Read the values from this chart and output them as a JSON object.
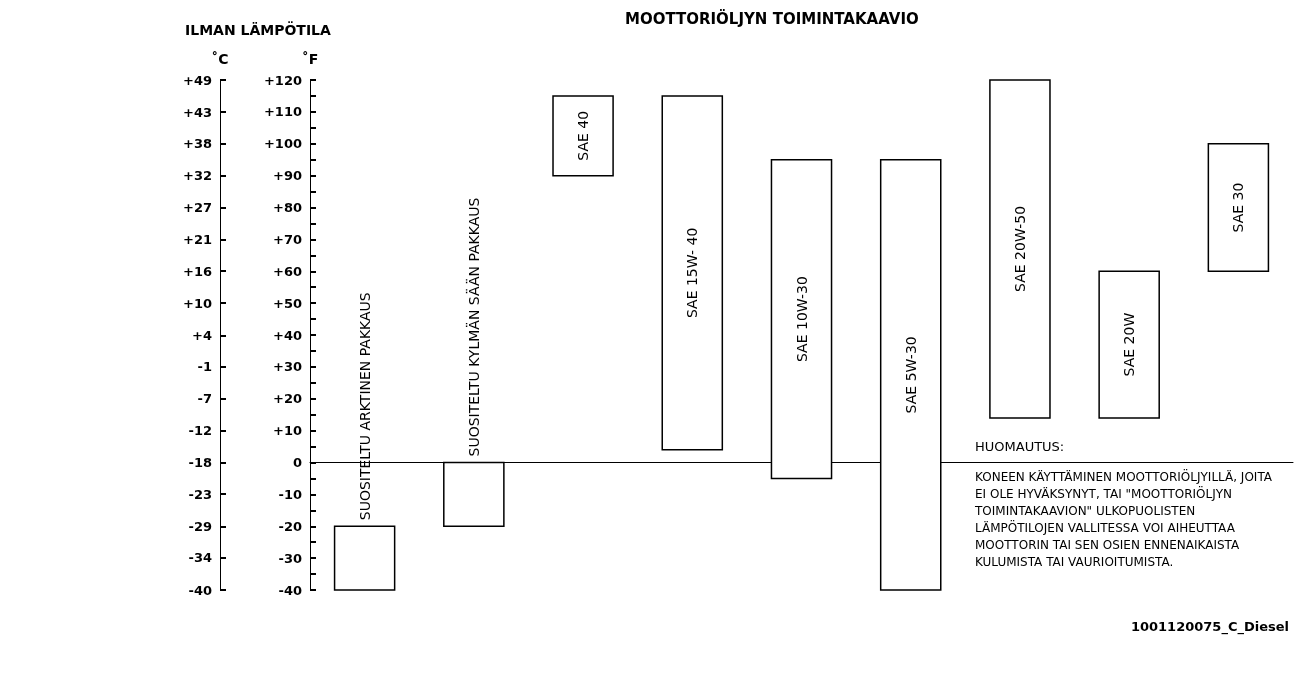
{
  "chart_data": {
    "type": "bar",
    "title": "MOOTTORIÖLJYN TOIMINTAKAAVIO",
    "subtitle": "ILMAN LÄMPÖTILA",
    "ylabel": "˚F",
    "y2label": "˚C",
    "categories": [
      "SUOSITELTU ARKTINEN PAKKAUS",
      "SUOSITELTU KYLMÄN SÄÄN PAKKAUS",
      "SAE 40",
      "SAE 15W- 40",
      "SAE 10W-30",
      "SAE 5W-30",
      "SAE 20W-50",
      "SAE 20W",
      "SAE 30"
    ],
    "base": [
      -40,
      -20,
      90,
      4,
      -5,
      -40,
      14,
      14,
      60
    ],
    "values": [
      20,
      20,
      25,
      111,
      100,
      135,
      106,
      46,
      40
    ],
    "color": "#ffffff",
    "ylim": [
      -40,
      120
    ],
    "yticks": [
      {
        "value": -40,
        "label": "-40"
      },
      {
        "value": -35,
        "label": null
      },
      {
        "value": -30,
        "label": "-30"
      },
      {
        "value": -25,
        "label": null
      },
      {
        "value": -20,
        "label": "-20"
      },
      {
        "value": -15,
        "label": null
      },
      {
        "value": -10,
        "label": "-10"
      },
      {
        "value": -5,
        "label": null
      },
      0,
      {
        "value": 5,
        "label": null
      },
      {
        "value": 10,
        "label": "+10"
      },
      {
        "value": 15,
        "label": null
      },
      {
        "value": 20,
        "label": "+20"
      },
      {
        "value": 25,
        "label": null
      },
      {
        "value": 30,
        "label": "+30"
      },
      {
        "value": 35,
        "label": null
      },
      {
        "value": 40,
        "label": "+40"
      },
      {
        "value": 45,
        "label": null
      },
      {
        "value": 50,
        "label": "+50"
      },
      {
        "value": 55,
        "label": null
      },
      {
        "value": 60,
        "label": "+60"
      },
      {
        "value": 65,
        "label": null
      },
      {
        "value": 70,
        "label": "+70"
      },
      {
        "value": 75,
        "label": null
      },
      {
        "value": 80,
        "label": "+80"
      },
      {
        "value": 85,
        "label": null
      },
      {
        "value": 90,
        "label": "+90"
      },
      {
        "value": 95,
        "label": null
      },
      {
        "value": 100,
        "label": "+100"
      },
      {
        "value": 105,
        "label": null
      },
      {
        "value": 110,
        "label": "+110"
      },
      {
        "value": 115,
        "label": null
      },
      {
        "value": 120,
        "label": "+120"
      }
    ],
    "y2lim": [
      -40,
      48.9
    ],
    "y2ticks": [
      {
        "value": -40,
        "label": "-40"
      },
      {
        "value": -34.4,
        "label": "-34"
      },
      {
        "value": -28.9,
        "label": "-29"
      },
      {
        "value": -23.3,
        "label": "-23"
      },
      {
        "value": -17.8,
        "label": "-18"
      },
      {
        "value": -12.2,
        "label": "-12"
      },
      {
        "value": -6.7,
        "label": "-7"
      },
      {
        "value": -1.1,
        "label": "-1"
      },
      {
        "value": 4.4,
        "label": "+4"
      },
      {
        "value": 10,
        "label": "+10"
      },
      {
        "value": 15.6,
        "label": "+16"
      },
      {
        "value": 21.1,
        "label": "+21"
      },
      {
        "value": 26.7,
        "label": "+27"
      },
      {
        "value": 32.2,
        "label": "+32"
      },
      {
        "value": 37.8,
        "label": "+38"
      },
      {
        "value": 43.3,
        "label": "+43"
      },
      {
        "value": 48.9,
        "label": "+49"
      }
    ],
    "annotations": [
      "HUOMAUTUS:",
      "KONEEN KÄYTTÄMINEN MOOTTORIÖLJYILLÄ, JOITA EI OLE HYVÄKSYNYT, TAI \"MOOTTORIÖLJYN TOIMINTAKAAVION\" ULKOPUOLISTEN LÄMPÖTILOJEN VALLITESSA VOI AIHEUTTAA MOOTTORIN TAI SEN OSIEN ENNENAIKAISTA KULUMISTA TAI VAURIOITUMISTA.",
      "1001120075_C_Diesel"
    ]
  }
}
